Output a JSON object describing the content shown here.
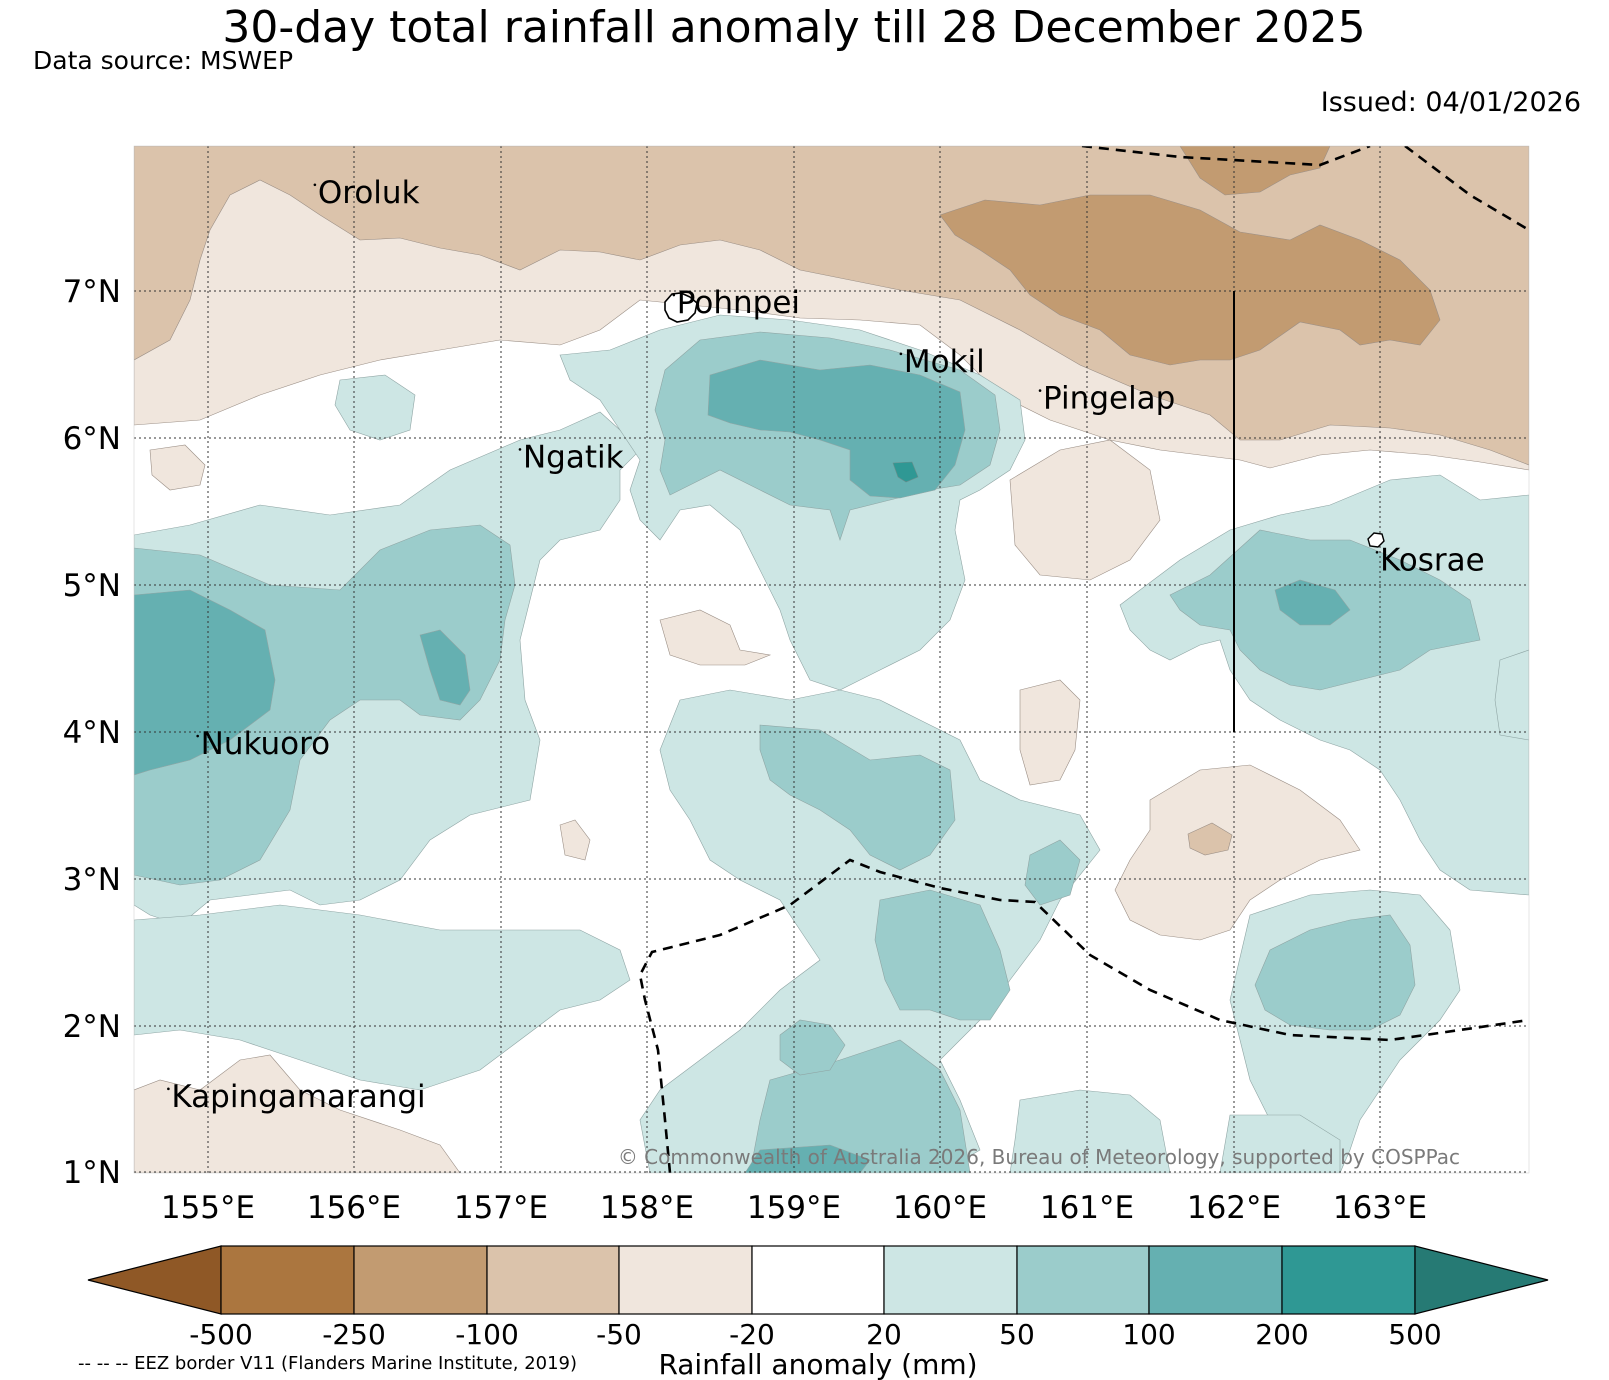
{
  "title": "30-day total rainfall anomaly till 28 December 2025",
  "data_source": "Data source: MSWEP",
  "issued": "Issued: 04/01/2026",
  "copyright": "© Commonwealth of Australia 2026, Bureau of Meteorology, supported by COSPPac",
  "eez_note": "-- -- -- EEZ border V11 (Flanders Marine Institute, 2019)",
  "map": {
    "lon_ticks": [
      "155°E",
      "156°E",
      "157°E",
      "158°E",
      "159°E",
      "160°E",
      "161°E",
      "162°E",
      "163°E"
    ],
    "lat_ticks": [
      "7°N",
      "6°N",
      "5°N",
      "4°N",
      "3°N",
      "2°N",
      "1°N"
    ],
    "places": [
      {
        "name": "Oroluk",
        "lon": 155.75,
        "lat": 7.6
      },
      {
        "name": "Pohnpei",
        "lon": 158.2,
        "lat": 6.85
      },
      {
        "name": "Mokil",
        "lon": 159.75,
        "lat": 6.45
      },
      {
        "name": "Pingelap",
        "lon": 160.7,
        "lat": 6.2
      },
      {
        "name": "Ngatik",
        "lon": 157.15,
        "lat": 5.8
      },
      {
        "name": "Kosrae",
        "lon": 163.0,
        "lat": 5.1
      },
      {
        "name": "Nukuoro",
        "lon": 154.95,
        "lat": 3.85
      },
      {
        "name": "Kapingamarangi",
        "lon": 154.75,
        "lat": 1.45
      }
    ]
  },
  "colorbar": {
    "label": "Rainfall anomaly (mm)",
    "tick_labels": [
      "-500",
      "-250",
      "-100",
      "-50",
      "-20",
      "20",
      "50",
      "100",
      "200",
      "500"
    ],
    "colors": [
      "#8f5826",
      "#ab763f",
      "#c29b71",
      "#dbc3ab",
      "#f0e6dd",
      "#ffffff",
      "#cde6e4",
      "#9bcccb",
      "#65b0b1",
      "#2f9894",
      "#267a74"
    ]
  }
}
